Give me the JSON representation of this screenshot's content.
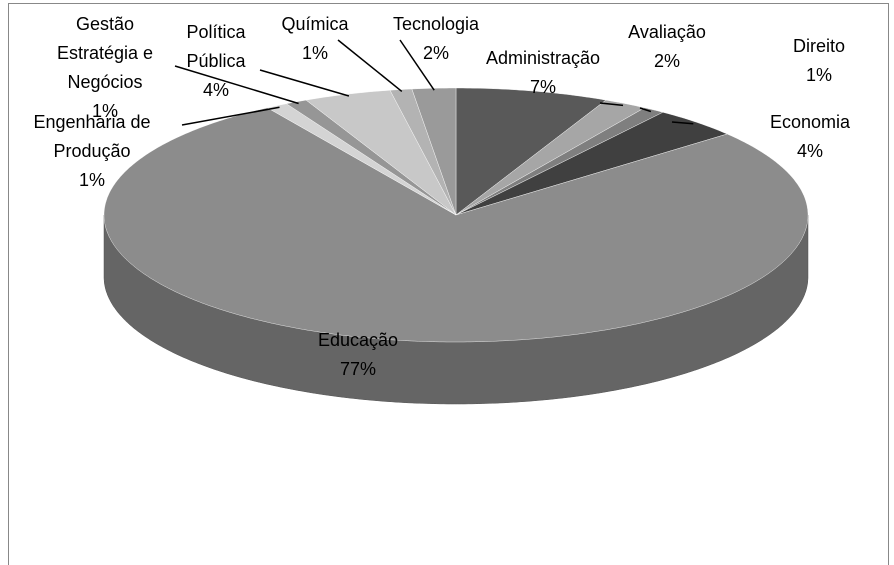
{
  "chart_data": {
    "type": "pie3d",
    "categories": [
      "Administração",
      "Avaliação",
      "Direito",
      "Economia",
      "Educação",
      "Engenharia de Produção",
      "Gestão Estratégia e Negócios",
      "Política Pública",
      "Química",
      "Tecnologia"
    ],
    "values": [
      7,
      2,
      1,
      4,
      77,
      1,
      1,
      4,
      1,
      2
    ],
    "value_labels": [
      "7%",
      "2%",
      "1%",
      "4%",
      "77%",
      "1%",
      "1%",
      "4%",
      "1%",
      "2%"
    ],
    "colors": [
      "#595959",
      "#a6a6a6",
      "#7f7f7f",
      "#404040",
      "#8c8c8c",
      "#d4d4d4",
      "#969696",
      "#c8c8c8",
      "#b3b3b3",
      "#9a9a9a"
    ]
  }
}
